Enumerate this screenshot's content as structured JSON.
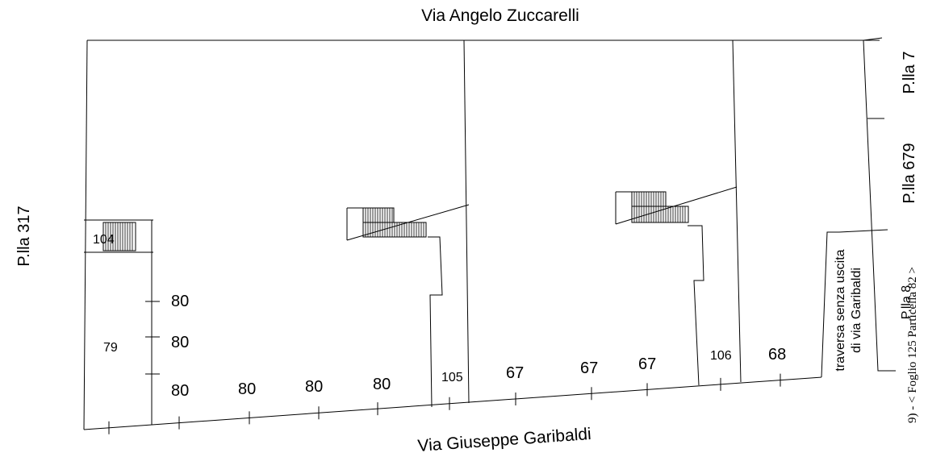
{
  "streets": {
    "north": "Via Angelo Zuccarelli",
    "south": "Via Giuseppe Garibaldi",
    "side_lane_line1": "traversa senza uscita",
    "side_lane_line2": "di via Garibaldi"
  },
  "parcels": {
    "p317": "P.lla 317",
    "p7": "P.lla 7",
    "p679": "P.lla 679",
    "p8": "P.lla 8"
  },
  "footer_text": "9) - < Foglio 125 Particella 82 >",
  "civic_numbers": {
    "n104": "104",
    "n79": "79",
    "n80_a": "80",
    "n80_b": "80",
    "n80_c": "80",
    "n80_d": "80",
    "n80_e": "80",
    "n80_f": "80",
    "n105": "105",
    "n67_a": "67",
    "n67_b": "67",
    "n67_c": "67",
    "n106": "106",
    "n68": "68"
  }
}
